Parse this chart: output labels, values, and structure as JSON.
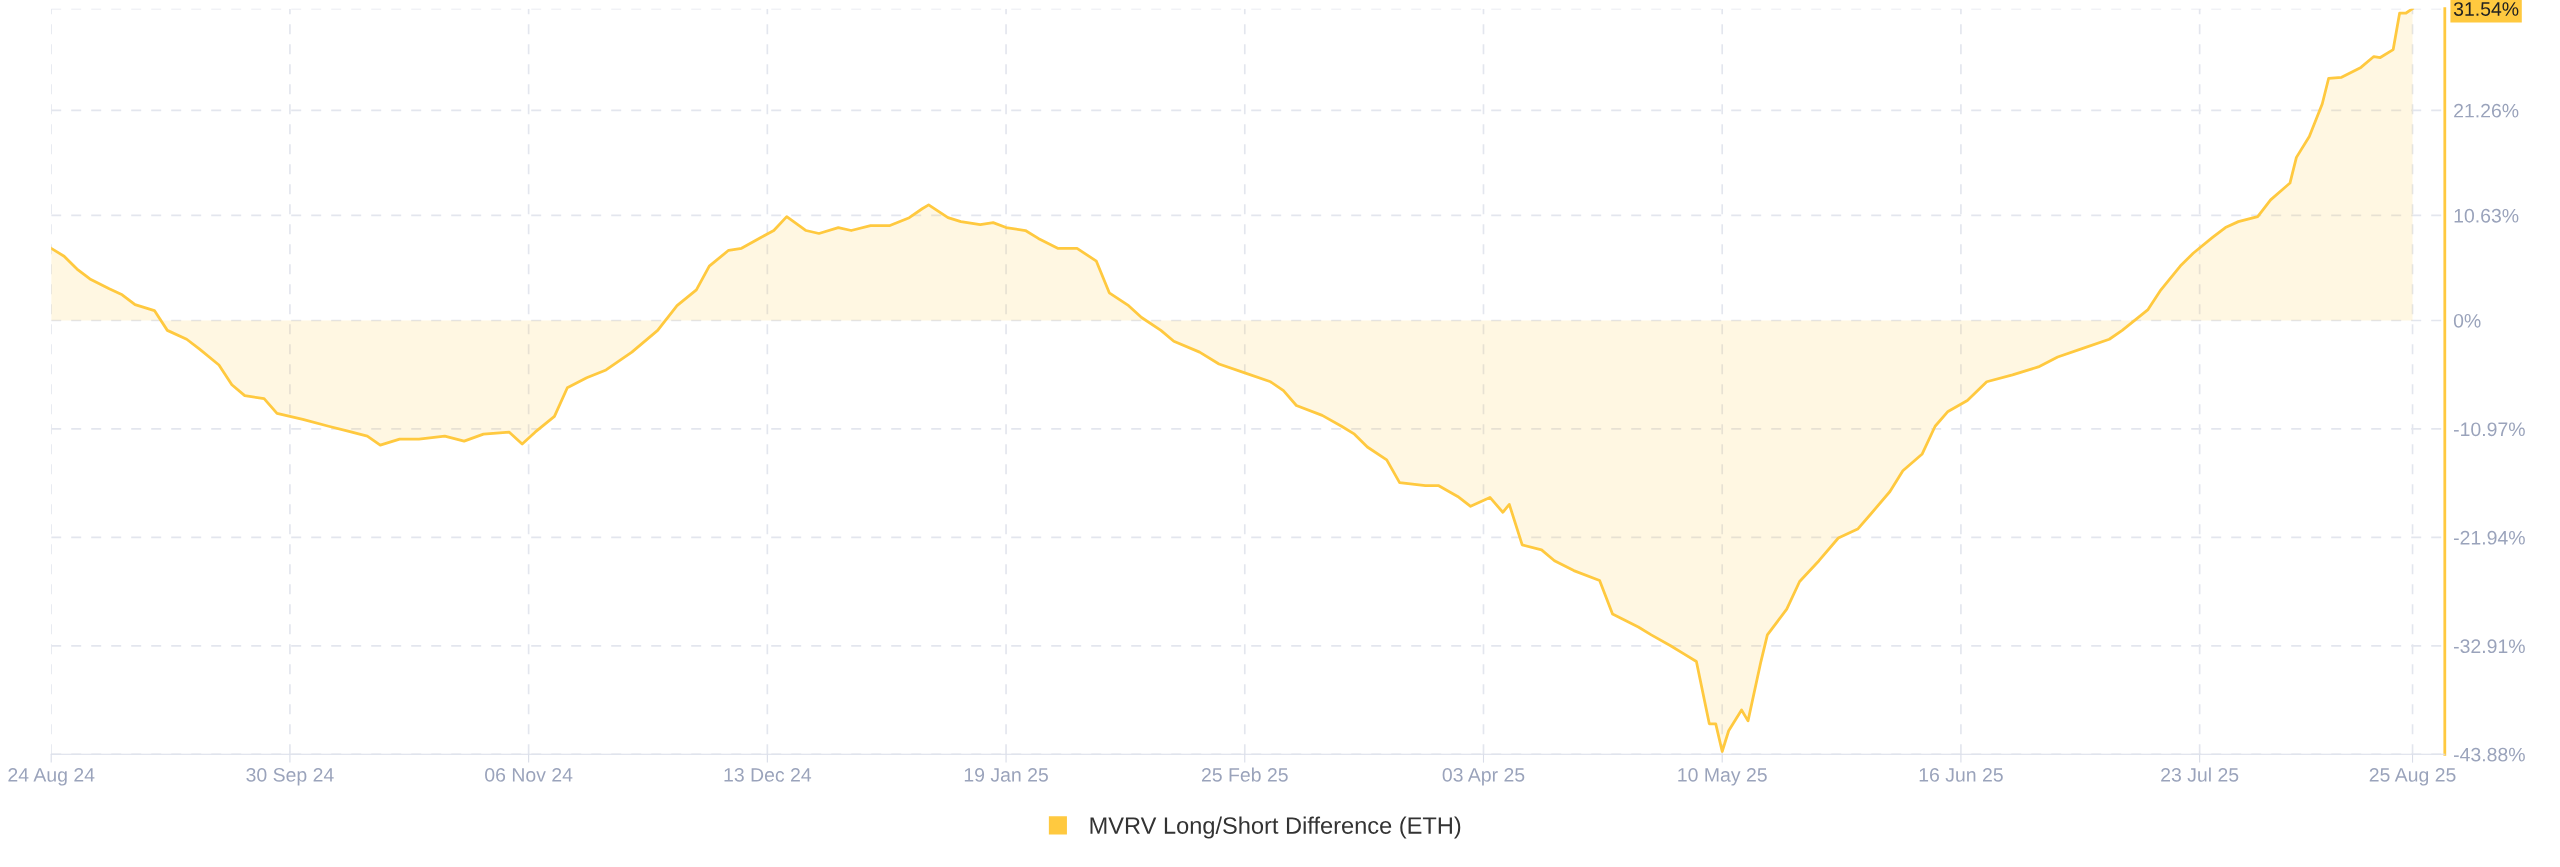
{
  "chart_data": {
    "type": "area",
    "x": [
      "2024-08-24",
      "2024-08-26",
      "2024-08-28",
      "2024-08-30",
      "2024-09-02",
      "2024-09-04",
      "2024-09-06",
      "2024-09-09",
      "2024-09-11",
      "2024-09-14",
      "2024-09-16",
      "2024-09-19",
      "2024-09-21",
      "2024-09-23",
      "2024-09-26",
      "2024-09-28",
      "2024-10-02",
      "2024-10-06",
      "2024-10-09",
      "2024-10-12",
      "2024-10-14",
      "2024-10-17",
      "2024-10-20",
      "2024-10-24",
      "2024-10-27",
      "2024-10-30",
      "2024-11-03",
      "2024-11-05",
      "2024-11-07",
      "2024-11-10",
      "2024-11-12",
      "2024-11-15",
      "2024-11-18",
      "2024-11-22",
      "2024-11-26",
      "2024-11-29",
      "2024-12-02",
      "2024-12-04",
      "2024-12-07",
      "2024-12-09",
      "2024-12-12",
      "2024-12-14",
      "2024-12-16",
      "2024-12-19",
      "2024-12-21",
      "2024-12-24",
      "2024-12-26",
      "2024-12-29",
      "2025-01-01",
      "2025-01-04",
      "2025-01-06",
      "2025-01-07",
      "2025-01-10",
      "2025-01-12",
      "2025-01-15",
      "2025-01-17",
      "2025-01-19",
      "2025-01-22",
      "2025-01-24",
      "2025-01-27",
      "2025-01-30",
      "2025-02-02",
      "2025-02-04",
      "2025-02-07",
      "2025-02-09",
      "2025-02-12",
      "2025-02-14",
      "2025-02-18",
      "2025-02-21",
      "2025-02-25",
      "2025-03-01",
      "2025-03-03",
      "2025-03-05",
      "2025-03-09",
      "2025-03-12",
      "2025-03-14",
      "2025-03-16",
      "2025-03-19",
      "2025-03-21",
      "2025-03-25",
      "2025-03-27",
      "2025-03-30",
      "2025-04-01",
      "2025-04-04",
      "2025-04-06",
      "2025-04-07",
      "2025-04-09",
      "2025-04-12",
      "2025-04-14",
      "2025-04-17",
      "2025-04-21",
      "2025-04-23",
      "2025-04-27",
      "2025-04-29",
      "2025-05-02",
      "2025-05-04",
      "2025-05-06",
      "2025-05-08",
      "2025-05-09",
      "2025-05-10",
      "2025-05-11",
      "2025-05-13",
      "2025-05-14",
      "2025-05-16",
      "2025-05-17",
      "2025-05-20",
      "2025-05-22",
      "2025-05-25",
      "2025-05-28",
      "2025-05-31",
      "2025-06-02",
      "2025-06-05",
      "2025-06-07",
      "2025-06-10",
      "2025-06-12",
      "2025-06-14",
      "2025-06-17",
      "2025-06-20",
      "2025-06-24",
      "2025-06-28",
      "2025-07-01",
      "2025-07-05",
      "2025-07-09",
      "2025-07-11",
      "2025-07-15",
      "2025-07-17",
      "2025-07-20",
      "2025-07-22",
      "2025-07-25",
      "2025-07-27",
      "2025-07-29",
      "2025-08-01",
      "2025-08-03",
      "2025-08-06",
      "2025-08-07",
      "2025-08-09",
      "2025-08-11",
      "2025-08-12",
      "2025-08-14",
      "2025-08-17",
      "2025-08-19",
      "2025-08-20",
      "2025-08-22",
      "2025-08-23",
      "2025-08-24",
      "2025-08-25"
    ],
    "series": [
      {
        "name": "MVRV Long/Short Difference (ETH)",
        "color": "#ffc93f",
        "values": [
          7.3,
          6.5,
          5.2,
          4.2,
          3.2,
          2.6,
          1.6,
          1.0,
          -1.0,
          -1.9,
          -2.9,
          -4.5,
          -6.5,
          -7.6,
          -7.9,
          -9.4,
          -10.0,
          -10.7,
          -11.2,
          -11.7,
          -12.6,
          -12.0,
          -12.0,
          -11.7,
          -12.2,
          -11.5,
          -11.3,
          -12.5,
          -11.3,
          -9.7,
          -6.8,
          -5.8,
          -5.0,
          -3.2,
          -1.0,
          1.5,
          3.1,
          5.5,
          7.1,
          7.3,
          8.4,
          9.1,
          10.5,
          9.1,
          8.8,
          9.4,
          9.1,
          9.6,
          9.6,
          10.4,
          11.3,
          11.7,
          10.4,
          10.0,
          9.7,
          9.9,
          9.4,
          9.1,
          8.3,
          7.3,
          7.3,
          6.0,
          2.8,
          1.5,
          0.3,
          -1.0,
          -2.1,
          -3.2,
          -4.4,
          -5.3,
          -6.2,
          -7.1,
          -8.6,
          -9.6,
          -10.7,
          -11.5,
          -12.8,
          -14.1,
          -16.4,
          -16.7,
          -16.7,
          -17.8,
          -18.8,
          -17.9,
          -19.4,
          -18.6,
          -22.7,
          -23.2,
          -24.3,
          -25.3,
          -26.3,
          -29.7,
          -31.0,
          -31.8,
          -32.9,
          -33.7,
          -34.5,
          -40.8,
          -40.8,
          -43.6,
          -41.5,
          -39.4,
          -40.5,
          -34.5,
          -31.8,
          -29.2,
          -26.4,
          -24.3,
          -22.0,
          -21.1,
          -19.6,
          -17.3,
          -15.2,
          -13.5,
          -10.7,
          -9.2,
          -8.1,
          -6.2,
          -5.5,
          -4.7,
          -3.7,
          -2.8,
          -1.9,
          -1.0,
          1.1,
          3.1,
          5.5,
          6.8,
          8.4,
          9.4,
          10.0,
          10.5,
          12.2,
          13.9,
          16.5,
          18.6,
          21.9,
          24.5,
          24.6,
          25.6,
          26.7,
          26.6,
          27.4,
          31.1,
          31.1,
          31.54
        ]
      }
    ],
    "xlim": [
      "2024-08-24",
      "2025-08-30"
    ],
    "xticks": [
      {
        "value": "2024-08-24",
        "label": "24 Aug 24"
      },
      {
        "value": "2024-09-30",
        "label": "30 Sep 24"
      },
      {
        "value": "2024-11-06",
        "label": "06 Nov 24"
      },
      {
        "value": "2024-12-13",
        "label": "13 Dec 24"
      },
      {
        "value": "2025-01-19",
        "label": "19 Jan 25"
      },
      {
        "value": "2025-02-25",
        "label": "25 Feb 25"
      },
      {
        "value": "2025-04-03",
        "label": "03 Apr 25"
      },
      {
        "value": "2025-05-10",
        "label": "10 May 25"
      },
      {
        "value": "2025-06-16",
        "label": "16 Jun 25"
      },
      {
        "value": "2025-07-23",
        "label": "23 Jul 25"
      },
      {
        "value": "2025-08-25",
        "label": "25 Aug 25"
      }
    ],
    "ylim": [
      -43.88,
      31.54
    ],
    "yticks": [
      {
        "value": -43.88,
        "label": "-43.88%"
      },
      {
        "value": -32.91,
        "label": "-32.91%"
      },
      {
        "value": -21.94,
        "label": "-21.94%"
      },
      {
        "value": -10.97,
        "label": "-10.97%"
      },
      {
        "value": 0,
        "label": "0%"
      },
      {
        "value": 10.63,
        "label": "10.63%"
      },
      {
        "value": 21.26,
        "label": "21.26%"
      },
      {
        "value": 31.54,
        "label": "31.54%"
      }
    ],
    "grid": true,
    "legend": "bottom",
    "line_style": "solid",
    "marker": "none"
  }
}
